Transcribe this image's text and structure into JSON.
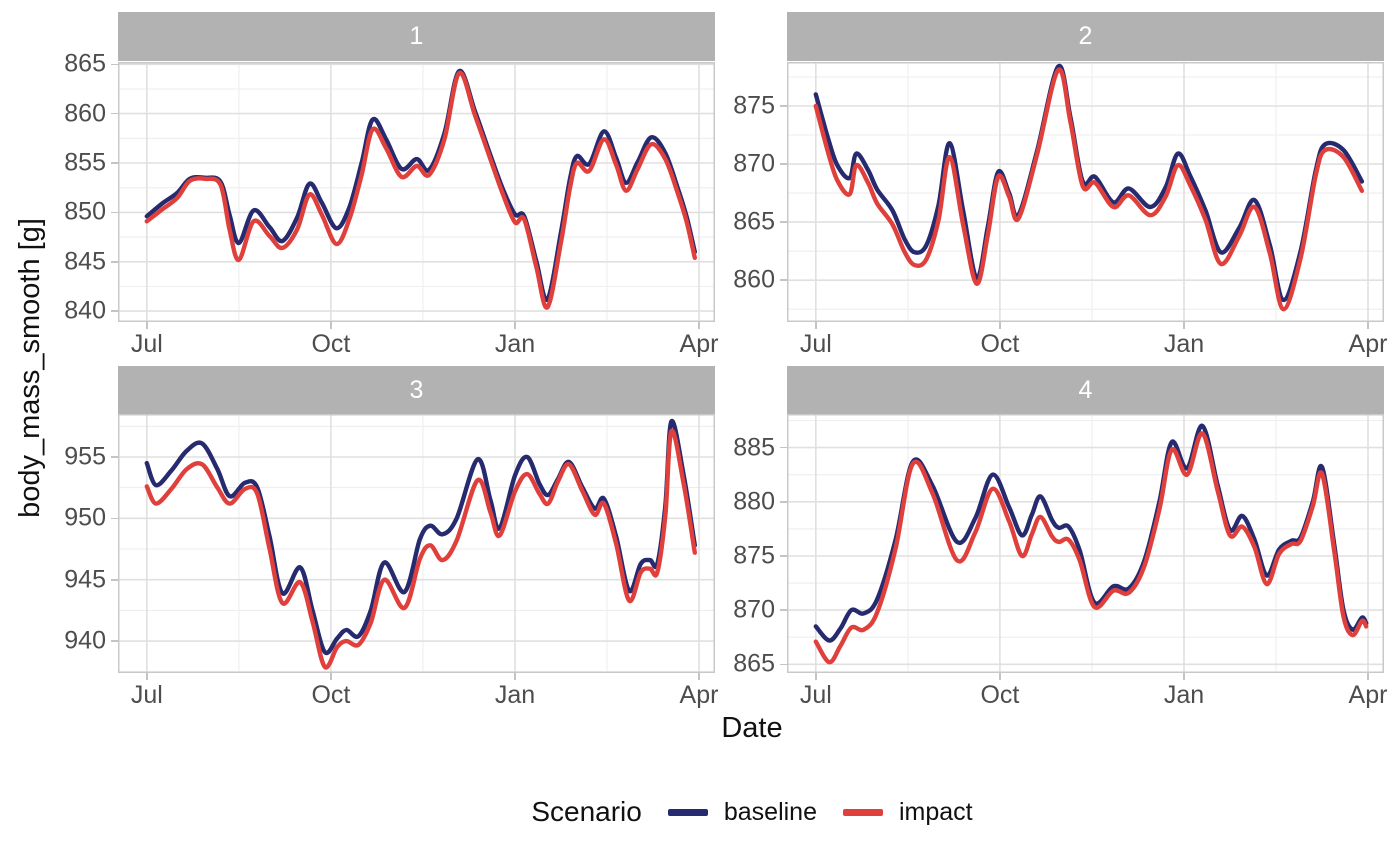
{
  "chart_data": {
    "type": "line",
    "xlabel": "Date",
    "ylabel": "body_mass_smooth [g]",
    "x_unit": "months after Jul (0=Jul, 3=Oct, 6=Jan, 9=Apr)",
    "x_domain": [
      -0.47,
      9.26
    ],
    "x_ticks": [
      {
        "pos": 0,
        "label": "Jul"
      },
      {
        "pos": 3,
        "label": "Oct"
      },
      {
        "pos": 6,
        "label": "Jan"
      },
      {
        "pos": 9,
        "label": "Apr"
      }
    ],
    "x_minor": [
      1.5,
      4.5,
      7.5
    ],
    "grid": {
      "major_color": "#e0e0e0",
      "minor_color": "#eeeeee",
      "border_color": "#c9c9c9",
      "strip_fill": "#b2b2b2",
      "strip_text": "#ffffff"
    },
    "legend": {
      "title": "Scenario",
      "entries": [
        {
          "name": "baseline",
          "color": "#262a6e"
        },
        {
          "name": "impact",
          "color": "#e0403c"
        }
      ]
    },
    "facets": [
      {
        "label": "1",
        "ylim": [
          838.9,
          865.23
        ],
        "y_ticks": [
          840,
          845,
          850,
          855,
          860,
          865
        ],
        "x": [
          0,
          0.25,
          0.5,
          0.7,
          0.95,
          1.2,
          1.35,
          1.5,
          1.74,
          2.0,
          2.21,
          2.45,
          2.65,
          2.85,
          3.09,
          3.3,
          3.5,
          3.68,
          3.9,
          4.15,
          4.4,
          4.6,
          4.85,
          5.09,
          5.35,
          5.6,
          5.8,
          6.0,
          6.15,
          6.35,
          6.53,
          6.75,
          6.9,
          7.01,
          7.21,
          7.45,
          7.65,
          7.81,
          8.0,
          8.22,
          8.45,
          8.65,
          8.8,
          8.93
        ],
        "series": [
          {
            "name": "baseline",
            "y": [
              849.6,
              850.9,
              852.0,
              853.4,
              853.5,
              853.1,
              849.7,
              846.9,
              850.2,
              848.5,
              847.1,
              849.5,
              852.9,
              851.0,
              848.4,
              850.5,
              855.0,
              859.4,
              857.4,
              854.4,
              855.4,
              854.3,
              858.0,
              864.3,
              860.2,
              855.8,
              852.4,
              849.8,
              849.6,
              845.0,
              841.2,
              848.0,
              853.5,
              855.7,
              854.9,
              858.2,
              855.5,
              853.0,
              855.1,
              857.6,
              856.0,
              852.5,
              849.5,
              846.0
            ]
          },
          {
            "name": "impact",
            "y": [
              849.1,
              850.3,
              851.5,
              853.2,
              853.4,
              852.8,
              848.2,
              845.2,
              849.1,
              847.6,
              846.4,
              848.3,
              851.8,
              849.8,
              846.8,
              849.3,
              853.8,
              858.4,
              856.5,
              853.6,
              854.7,
              853.8,
              857.4,
              864.1,
              859.8,
              855.4,
              851.9,
              849.0,
              849.3,
              844.4,
              840.4,
              847.0,
              852.6,
              855.0,
              854.2,
              857.4,
              854.8,
              852.2,
              854.4,
              856.9,
              855.4,
              852.0,
              849.0,
              845.4
            ]
          }
        ]
      },
      {
        "label": "2",
        "ylim": [
          856.4,
          878.79
        ],
        "y_ticks": [
          860,
          865,
          870,
          875
        ],
        "x": [
          0,
          0.2,
          0.35,
          0.55,
          0.66,
          0.85,
          1.0,
          1.25,
          1.45,
          1.61,
          1.8,
          2.0,
          2.18,
          2.4,
          2.62,
          2.8,
          2.97,
          3.15,
          3.3,
          3.6,
          3.95,
          4.15,
          4.35,
          4.55,
          4.85,
          5.1,
          5.45,
          5.7,
          5.9,
          6.1,
          6.35,
          6.6,
          6.9,
          7.15,
          7.4,
          7.62,
          7.9,
          8.15,
          8.3,
          8.6,
          8.9
        ],
        "series": [
          {
            "name": "baseline",
            "y": [
              876.0,
              872.2,
              869.9,
              868.8,
              870.9,
              869.5,
              867.8,
              866.0,
              863.5,
              862.4,
              863.0,
              866.5,
              871.8,
              866.0,
              860.2,
              864.5,
              869.3,
              867.5,
              865.6,
              871.0,
              878.4,
              874.0,
              868.5,
              868.9,
              866.7,
              867.9,
              866.3,
              868.0,
              870.9,
              869.0,
              866.0,
              862.4,
              864.5,
              866.9,
              863.0,
              858.3,
              862.5,
              869.5,
              871.7,
              871.2,
              868.5
            ]
          },
          {
            "name": "impact",
            "y": [
              875.0,
              871.0,
              868.6,
              867.4,
              869.9,
              868.4,
              866.6,
              864.8,
              862.4,
              861.3,
              861.8,
              865.2,
              870.6,
              864.8,
              859.7,
              863.8,
              868.9,
              867.2,
              865.3,
              870.7,
              878.1,
              873.6,
              868.1,
              868.4,
              866.3,
              867.3,
              865.6,
              867.2,
              869.9,
              868.2,
              865.2,
              861.4,
              863.8,
              866.3,
              862.3,
              857.5,
              861.9,
              869.1,
              871.2,
              870.6,
              867.7
            ]
          }
        ]
      },
      {
        "label": "3",
        "ylim": [
          937.4,
          958.5
        ],
        "y_ticks": [
          940,
          945,
          950,
          955
        ],
        "x": [
          0,
          0.15,
          0.4,
          0.65,
          0.9,
          1.15,
          1.35,
          1.6,
          1.8,
          2.0,
          2.21,
          2.5,
          2.7,
          2.9,
          3.1,
          3.25,
          3.45,
          3.65,
          3.87,
          4.2,
          4.45,
          4.62,
          4.82,
          5.05,
          5.39,
          5.6,
          5.75,
          6.0,
          6.2,
          6.4,
          6.54,
          6.7,
          6.88,
          7.1,
          7.3,
          7.45,
          7.65,
          7.86,
          8.05,
          8.2,
          8.32,
          8.45,
          8.55,
          8.75,
          8.93
        ],
        "series": [
          {
            "name": "baseline",
            "y": [
              954.5,
              952.7,
              953.9,
              955.5,
              956.1,
              954.0,
              951.8,
              952.9,
              952.5,
              948.5,
              943.9,
              946.0,
              942.5,
              939.1,
              940.2,
              940.9,
              940.4,
              942.5,
              946.4,
              944.0,
              948.3,
              949.4,
              948.7,
              950.0,
              954.8,
              951.5,
              949.2,
              953.5,
              955.0,
              952.8,
              951.9,
              953.2,
              954.6,
              952.5,
              950.8,
              951.6,
              948.5,
              944.1,
              946.3,
              946.6,
              946.3,
              951.0,
              957.9,
              953.5,
              947.8
            ]
          },
          {
            "name": "impact",
            "y": [
              952.6,
              951.2,
              952.4,
              954.0,
              954.4,
              952.5,
              951.2,
              952.4,
              952.0,
              947.5,
              943.1,
              944.8,
              941.6,
              937.9,
              939.5,
              940.0,
              939.7,
              941.5,
              945.0,
              942.7,
              946.7,
              947.8,
              946.6,
              948.2,
              953.1,
              950.5,
              948.6,
              952.2,
              953.6,
              952.0,
              951.2,
              953.0,
              954.4,
              952.2,
              950.3,
              951.2,
              947.9,
              943.3,
              945.6,
              945.9,
              945.6,
              950.2,
              957.1,
              952.8,
              947.2
            ]
          }
        ]
      },
      {
        "label": "4",
        "ylim": [
          864.2,
          888.1
        ],
        "y_ticks": [
          865,
          870,
          875,
          880,
          885
        ],
        "x": [
          0,
          0.22,
          0.4,
          0.58,
          0.78,
          1.0,
          1.3,
          1.58,
          1.9,
          2.3,
          2.6,
          2.88,
          3.15,
          3.36,
          3.52,
          3.66,
          3.85,
          3.96,
          4.12,
          4.3,
          4.54,
          4.85,
          5.1,
          5.35,
          5.6,
          5.8,
          6.05,
          6.3,
          6.55,
          6.75,
          6.95,
          7.15,
          7.35,
          7.55,
          7.75,
          7.9,
          8.1,
          8.25,
          8.45,
          8.6,
          8.75,
          8.9,
          8.97
        ],
        "series": [
          {
            "name": "baseline",
            "y": [
              868.5,
              867.2,
              868.3,
              870.0,
              869.7,
              871.0,
              876.5,
              883.7,
              881.5,
              876.3,
              878.5,
              882.5,
              879.5,
              876.9,
              878.8,
              880.5,
              878.3,
              877.6,
              877.7,
              875.5,
              870.7,
              872.2,
              872.0,
              874.5,
              880.0,
              885.5,
              883.1,
              887.0,
              881.5,
              877.4,
              878.7,
              876.5,
              873.2,
              875.6,
              876.4,
              876.7,
              880.0,
              883.2,
              876.0,
              870.0,
              868.2,
              869.3,
              868.8
            ]
          },
          {
            "name": "impact",
            "y": [
              867.1,
              865.2,
              866.7,
              868.4,
              868.2,
              869.8,
              875.7,
              883.5,
              880.8,
              874.6,
              877.2,
              881.2,
              878.2,
              875.0,
              877.0,
              878.6,
              876.8,
              876.3,
              876.5,
              874.6,
              870.3,
              871.8,
              871.6,
              874.0,
              879.3,
              884.8,
              882.5,
              886.3,
              881.0,
              876.9,
              877.7,
              875.8,
              872.4,
              875.2,
              876.1,
              876.4,
              879.6,
              882.6,
              875.4,
              869.4,
              867.7,
              869.0,
              868.5
            ]
          }
        ]
      }
    ]
  }
}
